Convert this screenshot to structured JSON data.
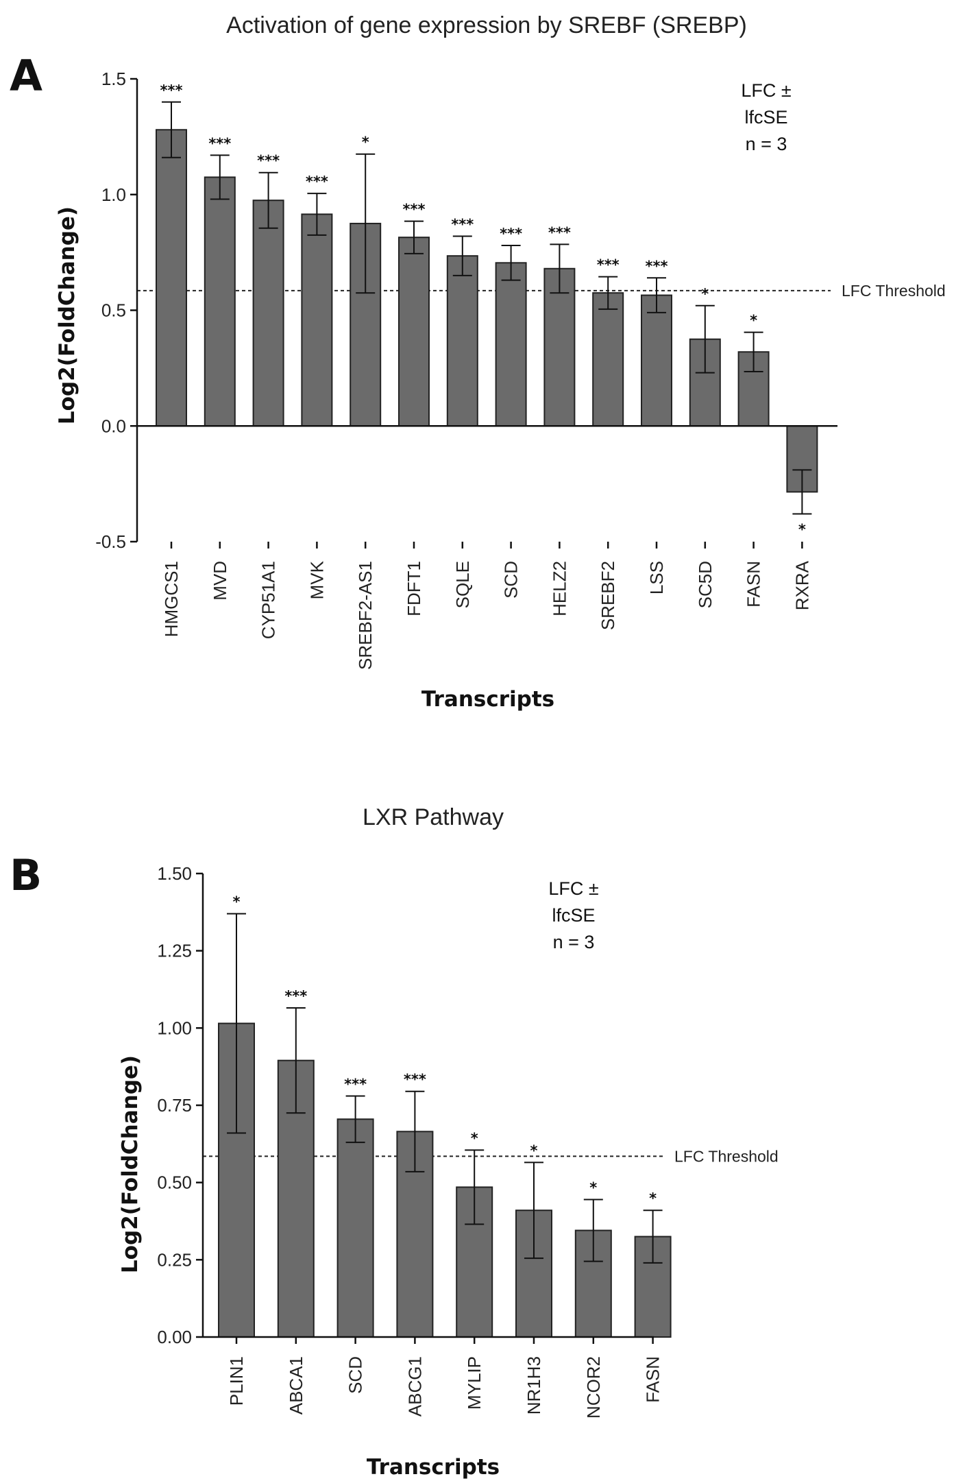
{
  "chart_data": [
    {
      "type": "bar",
      "panel_letter": "A",
      "title": "Activation of gene expression by SREBF (SREBP)",
      "xlabel": "Transcripts",
      "ylabel": "Log2(FoldChange)",
      "ylim": [
        -0.5,
        1.5
      ],
      "yticks": [
        "-0.5",
        "0.0",
        "0.5",
        "1.0",
        "1.5"
      ],
      "ytick_values": [
        -0.5,
        0.0,
        0.5,
        1.0,
        1.5
      ],
      "legend_lines": [
        "LFC ±",
        "lfcSE",
        "n = 3"
      ],
      "threshold": {
        "value": 0.585,
        "label": "LFC Threshold",
        "style": "dashed"
      },
      "categories": [
        "HMGCS1",
        "MVD",
        "CYP51A1",
        "MVK",
        "SREBF2-AS1",
        "FDFT1",
        "SQLE",
        "SCD",
        "HELZ2",
        "SREBF2",
        "LSS",
        "SC5D",
        "FASN",
        "RXRA"
      ],
      "values": [
        1.28,
        1.075,
        0.975,
        0.915,
        0.875,
        0.815,
        0.735,
        0.705,
        0.68,
        0.575,
        0.565,
        0.375,
        0.32,
        -0.285
      ],
      "errors": [
        0.12,
        0.095,
        0.12,
        0.09,
        0.3,
        0.07,
        0.085,
        0.075,
        0.105,
        0.07,
        0.075,
        0.145,
        0.085,
        0.095
      ],
      "significance": [
        "***",
        "***",
        "***",
        "***",
        "*",
        "***",
        "***",
        "***",
        "***",
        "***",
        "***",
        "*",
        "*",
        "*"
      ],
      "bar_color": "#6b6b6b"
    },
    {
      "type": "bar",
      "panel_letter": "B",
      "title": "LXR Pathway",
      "xlabel": "Transcripts",
      "ylabel": "Log2(FoldChange)",
      "ylim": [
        0,
        1.5
      ],
      "yticks": [
        "0.00",
        "0.25",
        "0.50",
        "0.75",
        "1.00",
        "1.25",
        "1.50"
      ],
      "ytick_values": [
        0.0,
        0.25,
        0.5,
        0.75,
        1.0,
        1.25,
        1.5
      ],
      "legend_lines": [
        "LFC ±",
        "lfcSE",
        "n = 3"
      ],
      "threshold": {
        "value": 0.585,
        "label": "LFC Threshold",
        "style": "dashed"
      },
      "categories": [
        "PLIN1",
        "ABCA1",
        "SCD",
        "ABCG1",
        "MYLIP",
        "NR1H3",
        "NCOR2",
        "FASN"
      ],
      "values": [
        1.015,
        0.895,
        0.705,
        0.665,
        0.485,
        0.41,
        0.345,
        0.325
      ],
      "errors": [
        0.355,
        0.17,
        0.075,
        0.13,
        0.12,
        0.155,
        0.1,
        0.085
      ],
      "significance": [
        "*",
        "***",
        "***",
        "***",
        "*",
        "*",
        "*",
        "*"
      ],
      "bar_color": "#6b6b6b"
    }
  ]
}
